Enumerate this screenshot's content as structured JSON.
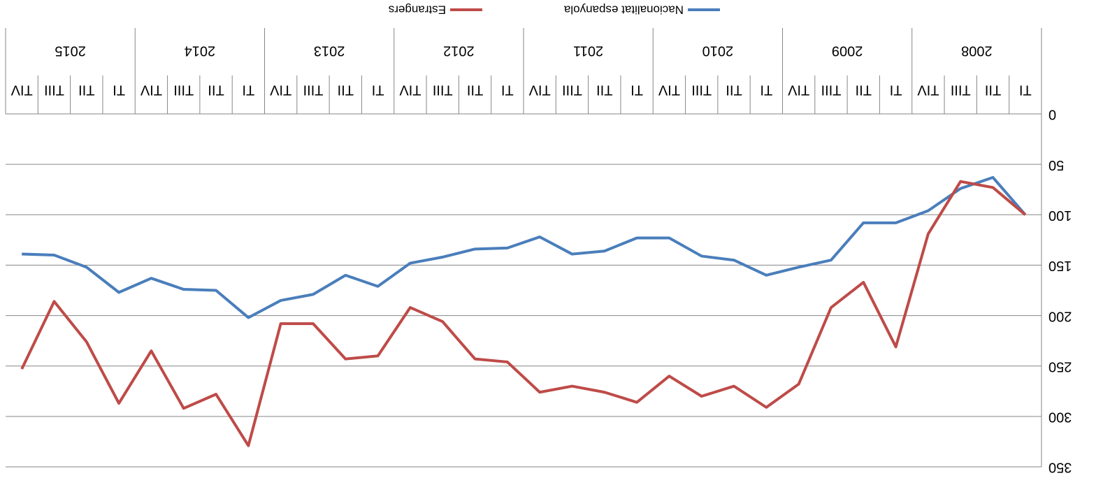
{
  "chart_data": {
    "type": "line",
    "categories": [
      "TI",
      "TII",
      "TIII",
      "TIV",
      "TI",
      "TII",
      "TIII",
      "TIV",
      "TI",
      "TII",
      "TIII",
      "TIV",
      "TI",
      "TII",
      "TIII",
      "TIV",
      "TI",
      "TII",
      "TIII",
      "TIV",
      "TI",
      "TII",
      "TIII",
      "TIV",
      "TI",
      "TII",
      "TIII",
      "TIV",
      "TI",
      "TII",
      "TIII",
      "TIV"
    ],
    "years": [
      "2008",
      "2009",
      "2010",
      "2011",
      "2012",
      "2013",
      "2014",
      "2015"
    ],
    "series": [
      {
        "name": "Nacionalitat espanyola",
        "color": "#4a7ebb",
        "values": [
          100,
          63,
          74,
          96,
          108,
          108,
          145,
          152,
          160,
          145,
          141,
          123,
          123,
          136,
          139,
          122,
          133,
          134,
          142,
          148,
          171,
          160,
          179,
          185,
          202,
          175,
          174,
          163,
          177,
          152,
          140,
          139
        ]
      },
      {
        "name": "Estrangers",
        "color": "#be4b48",
        "values": [
          100,
          73,
          67,
          119,
          231,
          167,
          192,
          268,
          291,
          270,
          280,
          260,
          286,
          276,
          270,
          276,
          246,
          243,
          206,
          192,
          240,
          243,
          208,
          208,
          329,
          278,
          292,
          235,
          287,
          226,
          186,
          253
        ]
      }
    ],
    "ylim": [
      0,
      350
    ],
    "yticks": [
      0,
      50,
      100,
      150,
      200,
      250,
      300,
      350
    ],
    "grid": true,
    "legend": "bottom"
  }
}
